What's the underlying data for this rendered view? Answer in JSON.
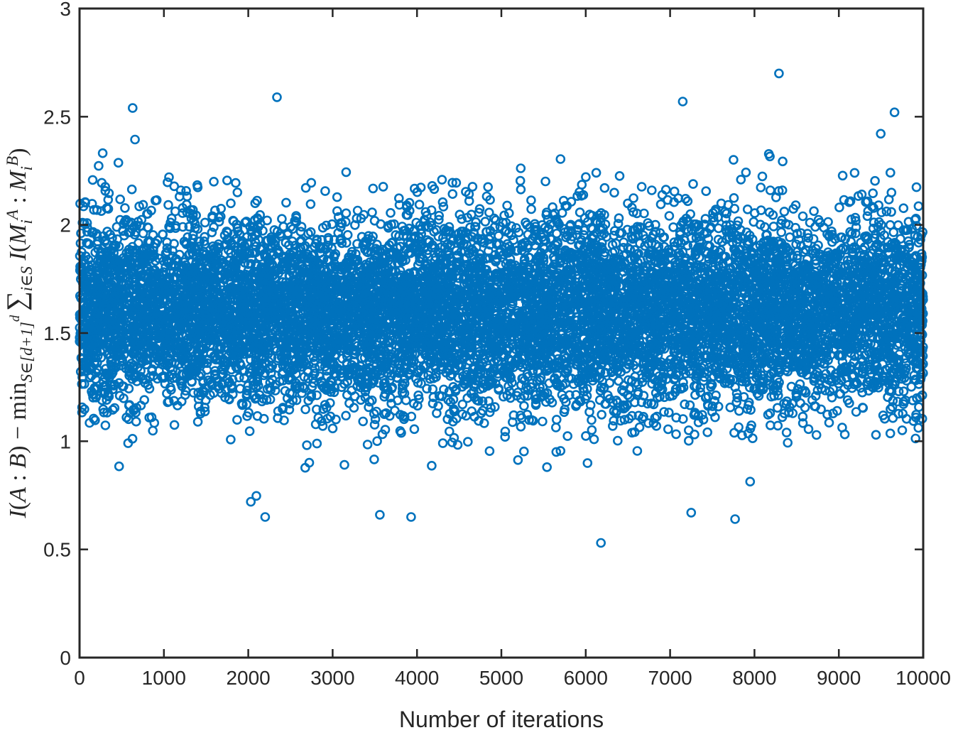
{
  "chart_data": {
    "type": "scatter",
    "title": "",
    "xlabel": "Number of iterations",
    "ylabel": "I(A : B) − min_{S∈[d+1]^d} ∑_{i∈S} I(M_i^A : M_i^B)",
    "xlim": [
      0,
      10000
    ],
    "ylim": [
      0,
      3
    ],
    "x_ticks": [
      0,
      1000,
      2000,
      3000,
      4000,
      5000,
      6000,
      7000,
      8000,
      9000,
      10000
    ],
    "y_ticks": [
      0,
      0.5,
      1,
      1.5,
      2,
      2.5,
      3
    ],
    "x_tick_labels": [
      "0",
      "1000",
      "2000",
      "3000",
      "4000",
      "5000",
      "6000",
      "7000",
      "8000",
      "9000",
      "10000"
    ],
    "y_tick_labels": [
      "0",
      "0.5",
      "1",
      "1.5",
      "2",
      "2.5",
      "3"
    ],
    "grid": false,
    "marker": "open-circle",
    "marker_color": "#0072BD",
    "series": [
      {
        "name": "",
        "n_points": 10000,
        "distribution": {
          "mean": 1.6,
          "std": 0.22
        },
        "notable_points": [
          {
            "x": 630,
            "y": 2.54
          },
          {
            "x": 2340,
            "y": 2.59
          },
          {
            "x": 7150,
            "y": 2.57
          },
          {
            "x": 8290,
            "y": 2.7
          },
          {
            "x": 9660,
            "y": 2.52
          },
          {
            "x": 6180,
            "y": 0.53
          },
          {
            "x": 2200,
            "y": 0.65
          },
          {
            "x": 3560,
            "y": 0.66
          },
          {
            "x": 3930,
            "y": 0.65
          },
          {
            "x": 7770,
            "y": 0.64
          },
          {
            "x": 7250,
            "y": 0.67
          },
          {
            "x": 2030,
            "y": 0.72
          }
        ]
      }
    ]
  }
}
